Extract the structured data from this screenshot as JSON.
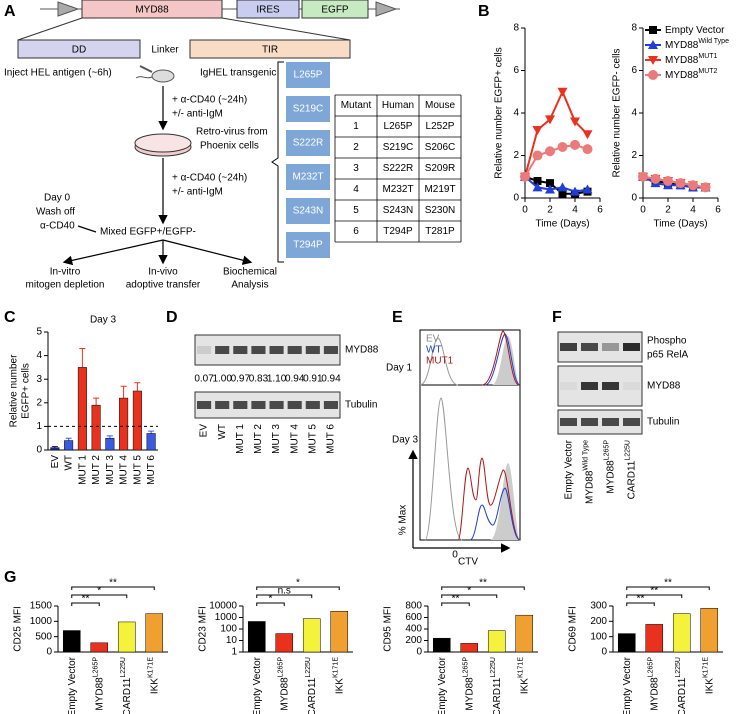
{
  "panel_labels": [
    "A",
    "B",
    "C",
    "D",
    "E",
    "F",
    "G"
  ],
  "panel_a": {
    "construct": [
      "MYD88",
      "IRES",
      "EGFP"
    ],
    "domains": [
      "DD",
      "Linker",
      "TIR"
    ],
    "inject": "Inject HEL antigen (~6h)",
    "mouse": "IgHEL transgenic",
    "step1": [
      "+ α-CD40 (~24h)",
      "+/- anti-IgM"
    ],
    "virus": [
      "Retro-virus from",
      "Phoenix cells"
    ],
    "step2": [
      "+ α-CD40 (~24h)",
      "+/- anti-IgM"
    ],
    "wash": [
      "Day 0",
      "Wash off",
      "α-CD40"
    ],
    "mixed": "Mixed EGFP+/EGFP-",
    "outcomes": [
      [
        "In-vitro",
        "mitogen depletion"
      ],
      [
        "In-vivo",
        "adoptive transfer"
      ],
      [
        "Biochemical",
        "Analysis"
      ]
    ],
    "mutations": [
      "L265P",
      "S219C",
      "S222R",
      "M232T",
      "S243N",
      "T294P"
    ],
    "table": {
      "header": [
        "Mutant",
        "Human",
        "Mouse"
      ],
      "rows": [
        [
          "1",
          "L265P",
          "L252P"
        ],
        [
          "2",
          "S219C",
          "S206C"
        ],
        [
          "3",
          "S222R",
          "S209R"
        ],
        [
          "4",
          "M232T",
          "M219T"
        ],
        [
          "5",
          "S243N",
          "S230N"
        ],
        [
          "6",
          "T294P",
          "T281P"
        ]
      ]
    }
  },
  "panel_d": {
    "blots": [
      "MYD88",
      "Tubulin"
    ],
    "quant": [
      "0.07",
      "1.00",
      "0.97",
      "0.83",
      "1.10",
      "0.94",
      "0.91",
      "0.94"
    ],
    "lanes": [
      "EV",
      "WT",
      "MUT 1",
      "MUT 2",
      "MUT 3",
      "MUT 4",
      "MUT 5",
      "MUT 6"
    ]
  },
  "panel_e": {
    "legend": [
      "EV",
      "WT",
      "MUT1"
    ],
    "days": [
      "Day 1",
      "Day 3"
    ],
    "ylabel": "% Max",
    "xlabel": "CTV",
    "tick": "0"
  },
  "panel_f": {
    "blots": [
      "Phospho",
      "p65 RelA",
      "MYD88",
      "Tubulin"
    ],
    "lanes": [
      "Empty Vector",
      "MYD88",
      "MYD88",
      "CARD11"
    ],
    "lane_superscripts": [
      null,
      "Wild Type",
      "L265P",
      "L225U"
    ]
  },
  "chart_data": [
    {
      "type": "line",
      "x": [
        0,
        1,
        2,
        3,
        4,
        5
      ],
      "xlim": [
        0,
        6
      ],
      "xticks": [
        0,
        2,
        4,
        6
      ],
      "ylim": [
        0,
        8
      ],
      "yticks": [
        0,
        2,
        4,
        6,
        8
      ],
      "xlabel": "Time (Days)",
      "ylabel": "Relative number EGFP+ cells",
      "series": [
        {
          "color": "#000000",
          "marker": "square",
          "values": [
            1,
            0.8,
            0.7,
            0.2,
            0.2,
            0.3
          ]
        },
        {
          "color": "#1f3fd6",
          "marker": "triangle",
          "values": [
            1,
            0.5,
            0.4,
            0.5,
            0.3,
            0.4
          ]
        },
        {
          "color": "#e8321e",
          "marker": "triangle-down",
          "values": [
            1,
            3.2,
            3.7,
            5,
            3.6,
            3
          ]
        },
        {
          "color": "#ec7a7a",
          "marker": "circle",
          "values": [
            1,
            2,
            2.2,
            2.4,
            2.5,
            2.3
          ]
        }
      ]
    },
    {
      "type": "line",
      "x": [
        0,
        1,
        2,
        3,
        4,
        5
      ],
      "xlim": [
        0,
        6
      ],
      "xticks": [
        0,
        2,
        4,
        6
      ],
      "ylim": [
        0,
        8
      ],
      "yticks": [
        0,
        2,
        4,
        6,
        8
      ],
      "xlabel": "Time (Days)",
      "ylabel": "Relative number EGFP- cells",
      "legend": "upper right",
      "series": [
        {
          "name": "Empty Vector",
          "color": "#000000",
          "marker": "square",
          "values": [
            1,
            0.8,
            0.7,
            0.6,
            0.5,
            0.5
          ]
        },
        {
          "name": "MYD88",
          "superscript": "Wild Type",
          "color": "#1f3fd6",
          "marker": "triangle",
          "values": [
            1,
            0.7,
            0.6,
            0.6,
            0.5,
            0.5
          ]
        },
        {
          "name": "MYD88",
          "superscript": "MUT1",
          "color": "#e8321e",
          "marker": "triangle-down",
          "values": [
            1,
            0.9,
            0.8,
            0.7,
            0.6,
            0.5
          ]
        },
        {
          "name": "MYD88",
          "superscript": "MUT2",
          "color": "#ec7a7a",
          "marker": "circle",
          "values": [
            1,
            0.9,
            0.8,
            0.7,
            0.6,
            0.5
          ]
        }
      ]
    },
    {
      "type": "bar",
      "title": "Day 3",
      "ylabel": [
        "Relative number",
        "EGFP+ cells"
      ],
      "categories": [
        "EV",
        "WT",
        "MUT 1",
        "MUT 2",
        "MUT 3",
        "MUT 4",
        "MUT 5",
        "MUT 6"
      ],
      "values": [
        0.1,
        0.4,
        3.5,
        1.9,
        0.5,
        2.2,
        2.5,
        0.7
      ],
      "errors": [
        0.05,
        0.1,
        0.8,
        0.3,
        0.1,
        0.5,
        0.35,
        0.1
      ],
      "colors": [
        "#1a2a8c",
        "#3a5ae0",
        "#e8321e",
        "#e8321e",
        "#3a5ae0",
        "#e8321e",
        "#e8321e",
        "#3a5ae0"
      ],
      "ylim": [
        0,
        5
      ],
      "yticks": [
        0,
        1,
        2,
        3,
        4,
        5
      ],
      "reference_line": 1
    },
    {
      "type": "bar",
      "ylabel": "CD25 MFI",
      "categories": [
        "Empty Vector",
        "MYD88",
        "CARD11",
        "IKK"
      ],
      "superscripts": [
        null,
        "L265P",
        "L225U",
        "K171E"
      ],
      "values": [
        700,
        300,
        980,
        1250
      ],
      "colors": [
        "#000000",
        "#e8321e",
        "#f5f23c",
        "#f0a030"
      ],
      "ylim": [
        0,
        1500
      ],
      "yticks": [
        0,
        500,
        1000,
        1500
      ],
      "significance": [
        "**",
        "*",
        "**"
      ]
    },
    {
      "type": "bar",
      "ylabel": "CD23 MFI",
      "log": true,
      "categories": [
        "Empty Vector",
        "MYD88",
        "CARD11",
        "IKK"
      ],
      "superscripts": [
        null,
        "L265P",
        "L225U",
        "K171E"
      ],
      "values": [
        450,
        40,
        800,
        3500
      ],
      "colors": [
        "#000000",
        "#e8321e",
        "#f5f23c",
        "#f0a030"
      ],
      "ylim": [
        1,
        10000
      ],
      "yticks": [
        1,
        10,
        100,
        1000,
        10000
      ],
      "significance": [
        "*",
        "n.s",
        "*"
      ]
    },
    {
      "type": "bar",
      "ylabel": "CD95 MFI",
      "categories": [
        "Empty Vector",
        "MYD88",
        "CARD11",
        "IKK"
      ],
      "superscripts": [
        null,
        "L265P",
        "L225U",
        "K171E"
      ],
      "values": [
        240,
        150,
        370,
        640
      ],
      "colors": [
        "#000000",
        "#e8321e",
        "#f5f23c",
        "#f0a030"
      ],
      "ylim": [
        0,
        800
      ],
      "yticks": [
        0,
        200,
        400,
        600,
        800
      ],
      "significance": [
        "**",
        "*",
        "**"
      ]
    },
    {
      "type": "bar",
      "ylabel": "CD69 MFI",
      "categories": [
        "Empty Vector",
        "MYD88",
        "CARD11",
        "IKK"
      ],
      "superscripts": [
        null,
        "L265P",
        "L225U",
        "K171E"
      ],
      "values": [
        120,
        180,
        250,
        285
      ],
      "colors": [
        "#000000",
        "#e8321e",
        "#f5f23c",
        "#f0a030"
      ],
      "ylim": [
        0,
        300
      ],
      "yticks": [
        0,
        100,
        200,
        300
      ],
      "significance": [
        "**",
        "**",
        "**"
      ]
    }
  ]
}
